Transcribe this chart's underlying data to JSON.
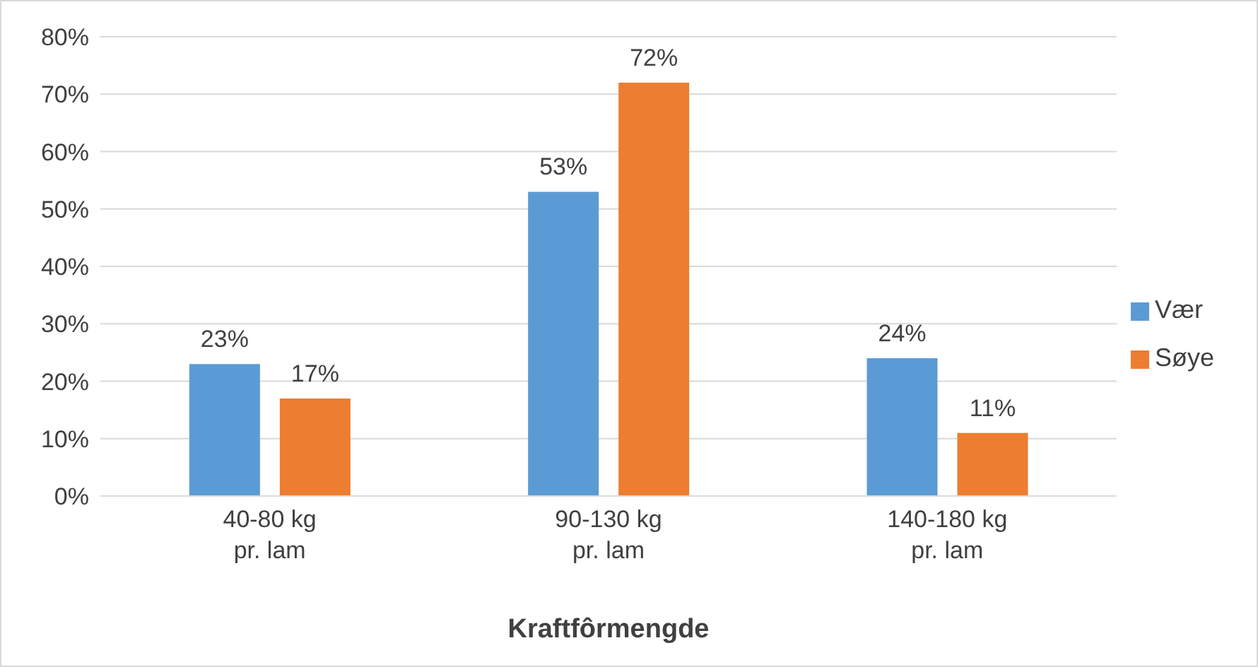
{
  "chart_data": {
    "type": "bar",
    "xlabel": "Kraftfôrmengde",
    "categories": [
      "40-80 kg pr. lam",
      "90-130 kg pr. lam",
      "140-180 kg pr. lam"
    ],
    "series": [
      {
        "name": "Vær",
        "color": "#5b9bd5",
        "values": [
          23,
          53,
          24
        ],
        "value_labels": [
          "23%",
          "53%",
          "24%"
        ]
      },
      {
        "name": "Søye",
        "color": "#ed7d31",
        "values": [
          17,
          72,
          11
        ],
        "value_labels": [
          "17%",
          "72%",
          "11%"
        ]
      }
    ],
    "ylim": [
      0,
      80
    ],
    "yticks": [
      {
        "value": 0,
        "label": "0%"
      },
      {
        "value": 10,
        "label": "10%"
      },
      {
        "value": 20,
        "label": "20%"
      },
      {
        "value": 30,
        "label": "30%"
      },
      {
        "value": 40,
        "label": "40%"
      },
      {
        "value": 50,
        "label": "50%"
      },
      {
        "value": 60,
        "label": "60%"
      },
      {
        "value": 70,
        "label": "70%"
      },
      {
        "value": 80,
        "label": "80%"
      }
    ],
    "grid": "y",
    "legend": "right"
  }
}
